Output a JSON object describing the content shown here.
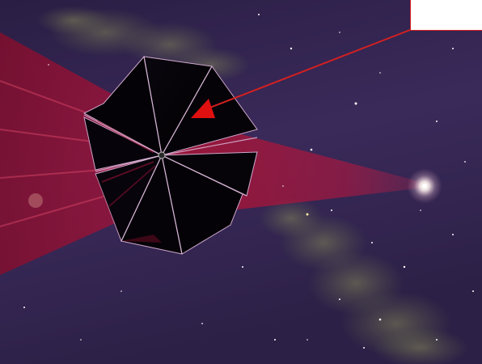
{
  "scene": {
    "subject": "solar-sail-spacecraft",
    "beam_source": "distant-star",
    "colors": {
      "space_deep": "#1e1433",
      "space_mid": "#3a2a5c",
      "beam": "#c0143c",
      "nebula": "#6f7a4c",
      "sail_panel": "#050308",
      "sail_edge": "#d9b8d8",
      "callout": "#d42020"
    }
  },
  "callout": {
    "label": ""
  }
}
